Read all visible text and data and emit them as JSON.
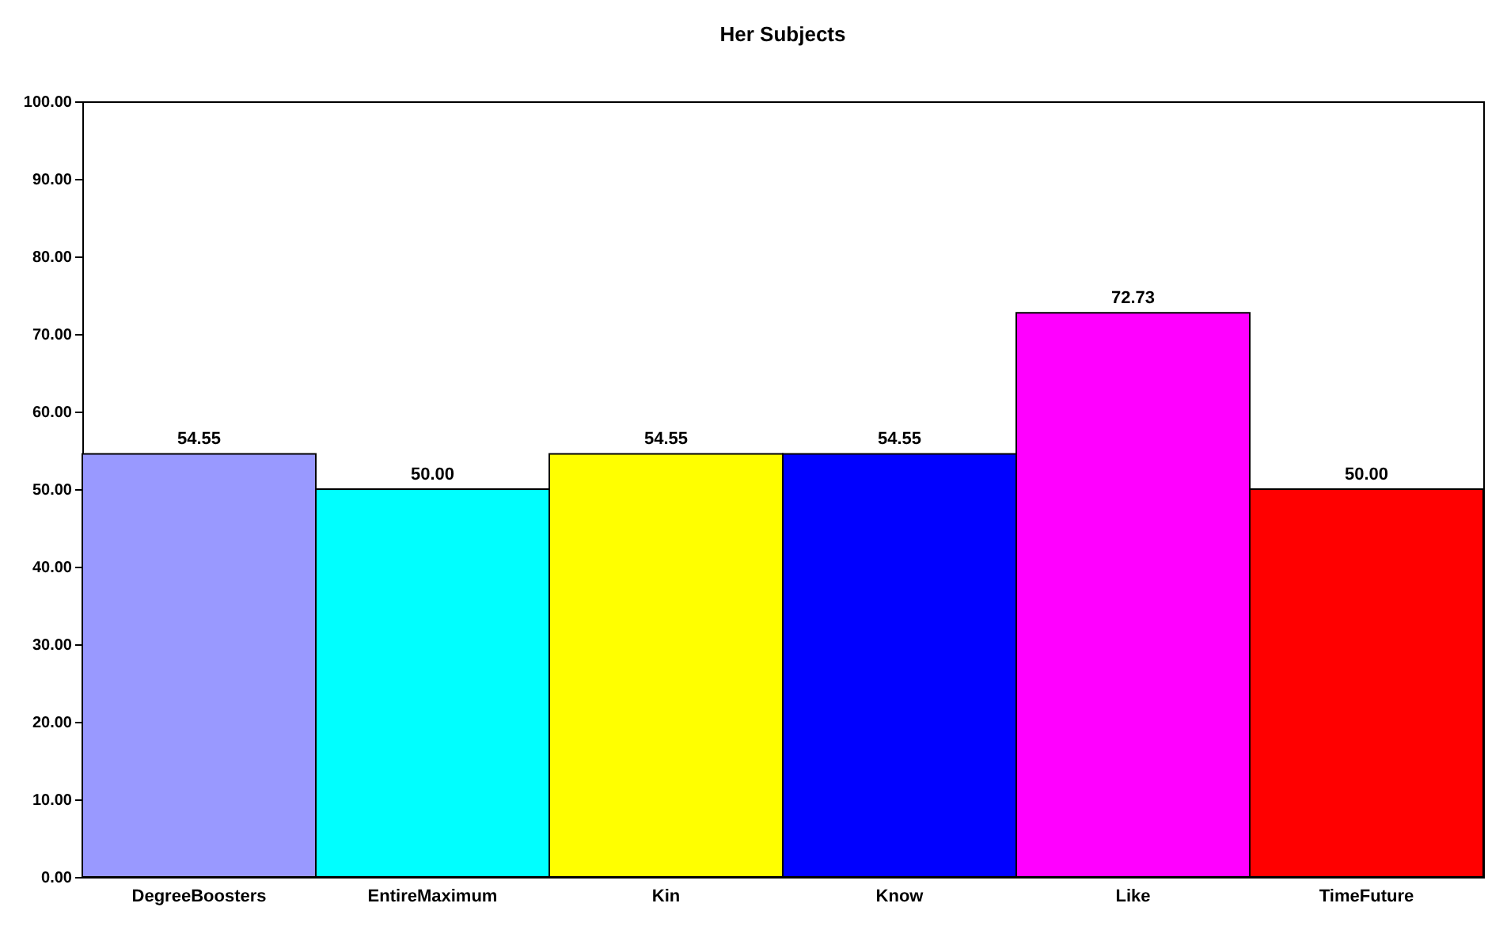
{
  "chart_data": {
    "type": "bar",
    "title": "Her Subjects",
    "categories": [
      "DegreeBoosters",
      "EntireMaximum",
      "Kin",
      "Know",
      "Like",
      "TimeFuture"
    ],
    "values": [
      54.55,
      50.0,
      54.55,
      54.55,
      72.73,
      50.0
    ],
    "value_labels": [
      "54.55",
      "50.00",
      "54.55",
      "54.55",
      "72.73",
      "50.00"
    ],
    "colors": [
      "#9999ff",
      "#00ffff",
      "#ffff00",
      "#0000ff",
      "#ff00ff",
      "#ff0000"
    ],
    "ylim": [
      0,
      100
    ],
    "yticks": [
      {
        "value": 0,
        "label": "0.00"
      },
      {
        "value": 10,
        "label": "10.00"
      },
      {
        "value": 20,
        "label": "20.00"
      },
      {
        "value": 30,
        "label": "30.00"
      },
      {
        "value": 40,
        "label": "40.00"
      },
      {
        "value": 50,
        "label": "50.00"
      },
      {
        "value": 60,
        "label": "60.00"
      },
      {
        "value": 70,
        "label": "70.00"
      },
      {
        "value": 80,
        "label": "80.00"
      },
      {
        "value": 90,
        "label": "90.00"
      },
      {
        "value": 100,
        "label": "100.00"
      }
    ]
  }
}
